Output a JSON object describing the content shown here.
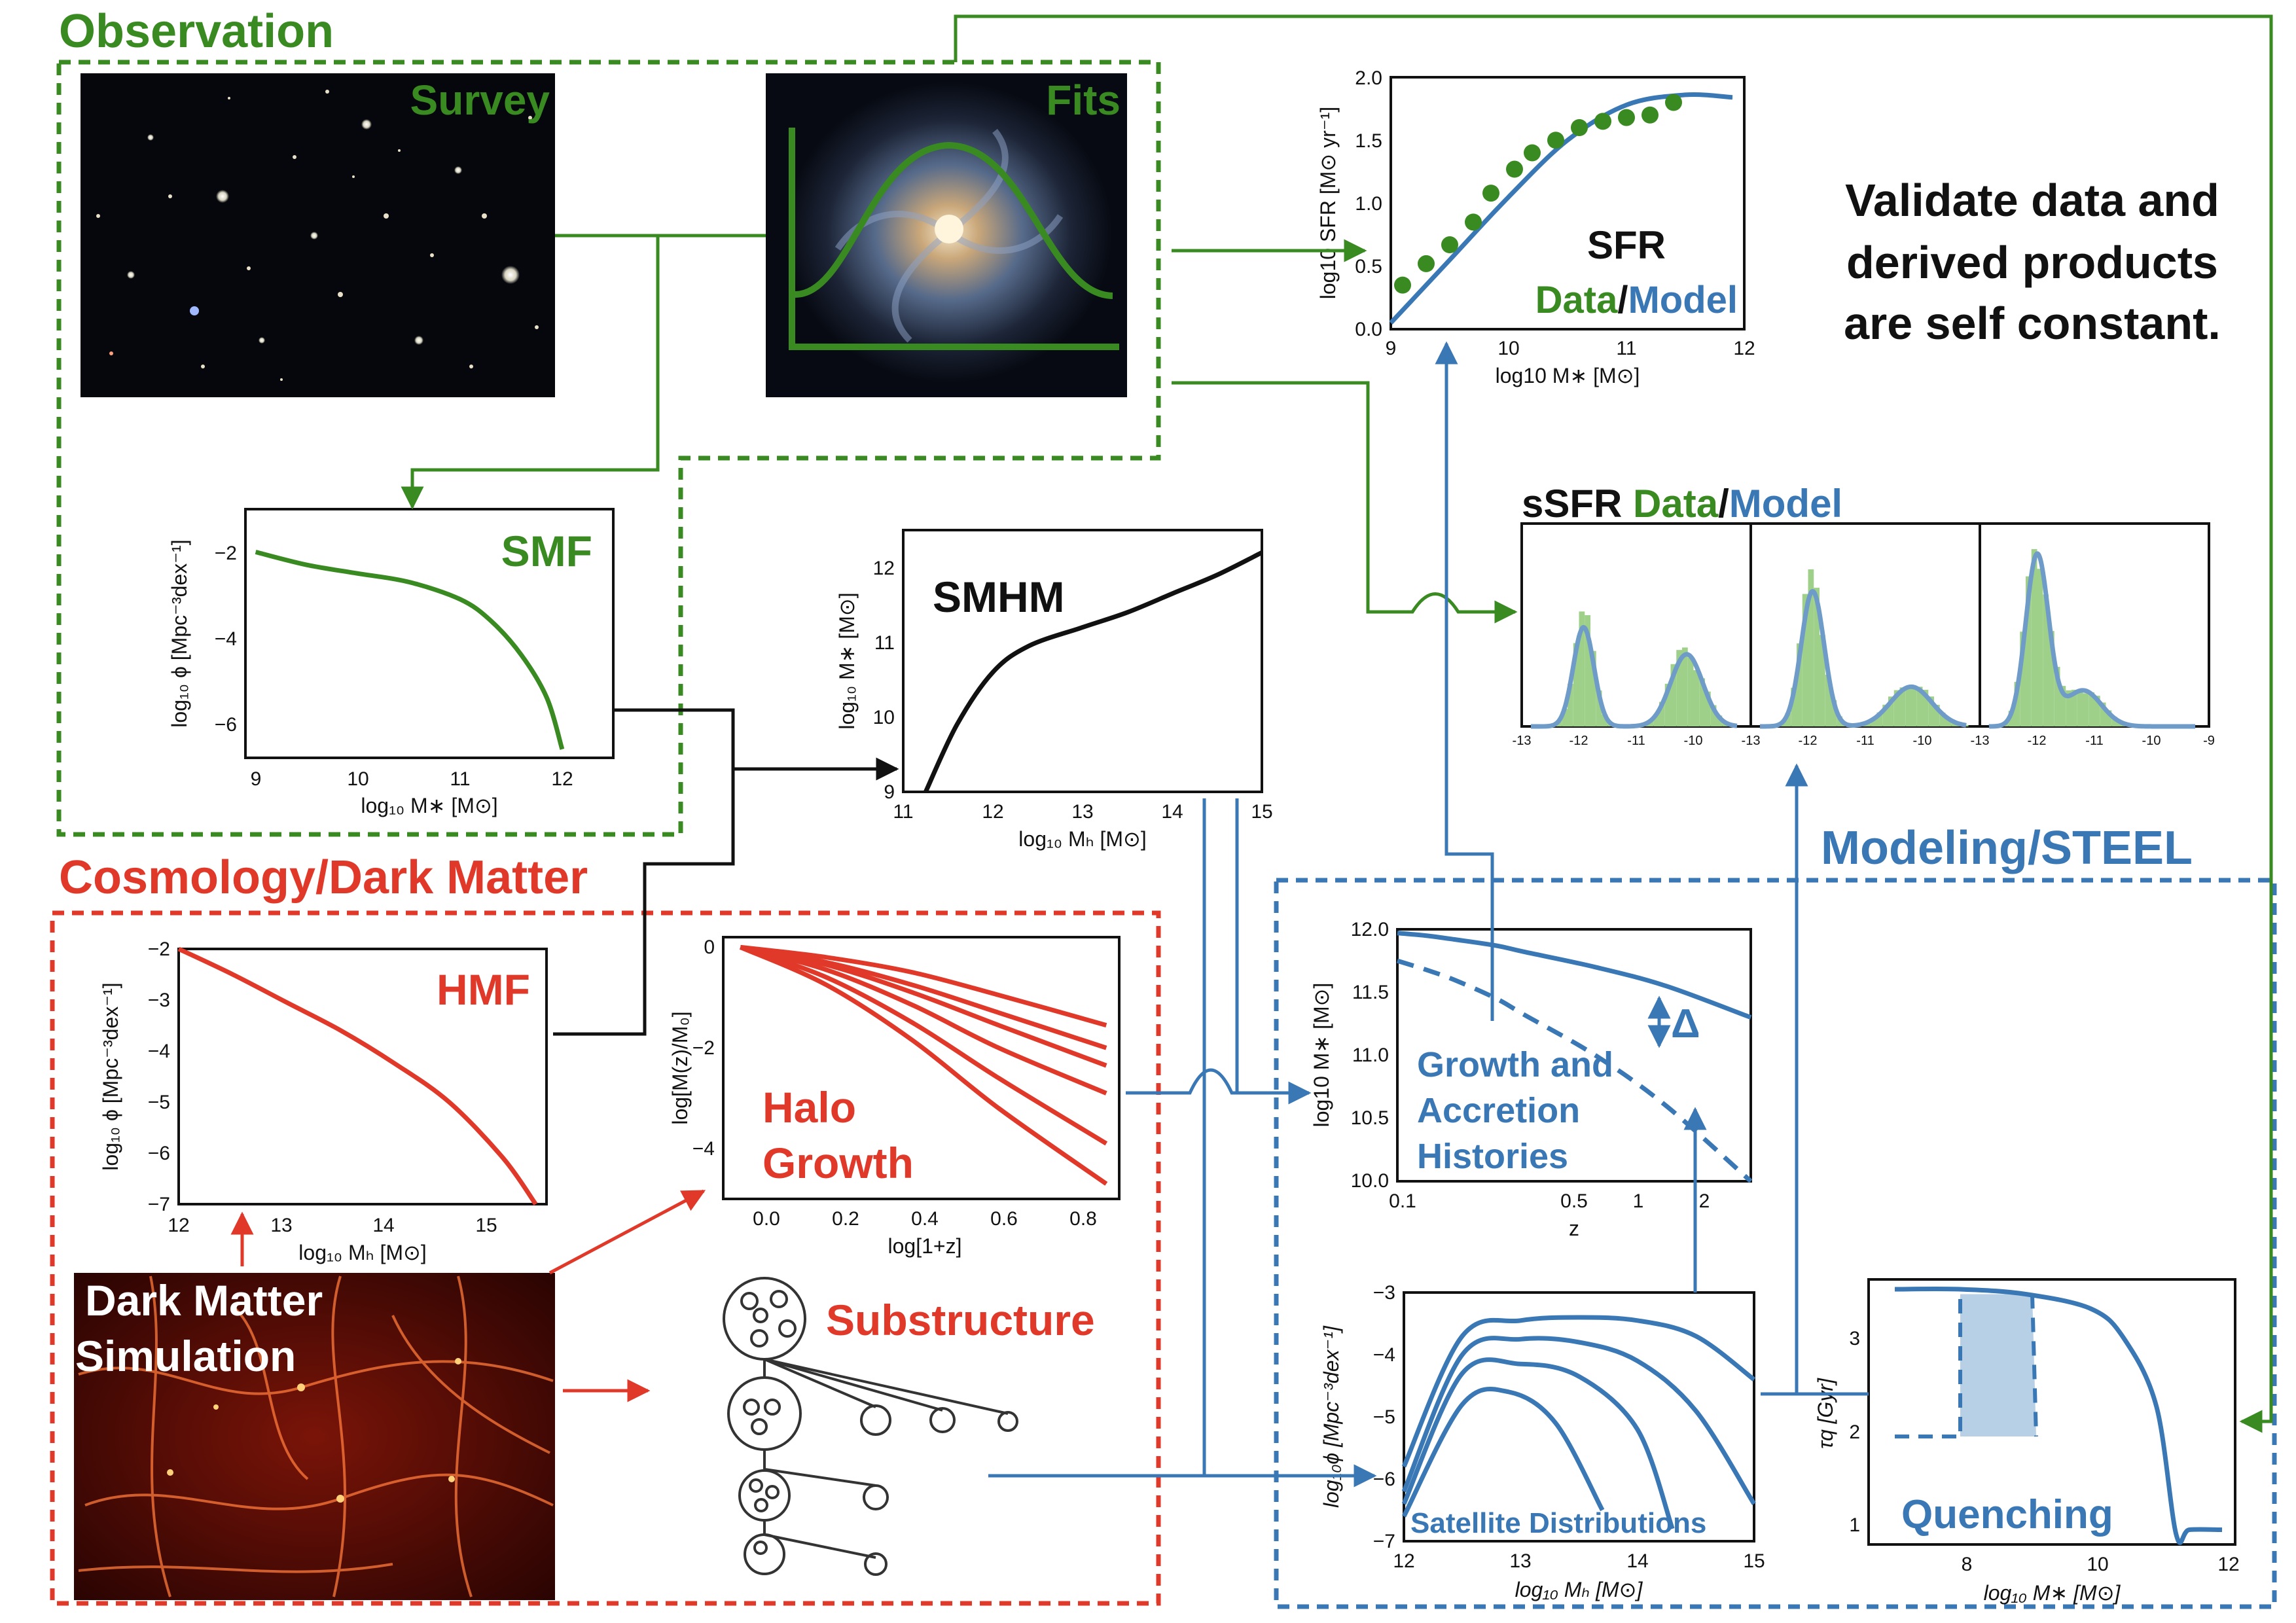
{
  "colors": {
    "observation": "#3a8a22",
    "cosmology": "#e0392a",
    "modeling": "#3a78b5",
    "black": "#111111",
    "hist_fill": "#9ed08a"
  },
  "sections": {
    "observation": "Observation",
    "cosmology": "Cosmology/Dark Matter",
    "modeling": "Modeling/STEEL"
  },
  "images": {
    "survey": "Survey",
    "fits": "Fits",
    "dm_line1": "Dark Matter",
    "dm_line2": "Simulation",
    "substructure": "Substructure"
  },
  "note": {
    "line1": "Validate data and",
    "line2": "derived products",
    "line3": "are self constant."
  },
  "plots": {
    "sfr": {
      "title": "SFR",
      "data_word": "Data",
      "slash": "/",
      "model_word": "Model",
      "xlabel": "log10 M∗ [M⊙]",
      "ylabel": "log10 SFR [M⊙ yr⁻¹]",
      "xticks": [
        "9",
        "10",
        "11",
        "12"
      ],
      "yticks": [
        "0.0",
        "0.5",
        "1.0",
        "1.5",
        "2.0"
      ]
    },
    "ssfr": {
      "title_a": "sSFR ",
      "data_word": "Data",
      "slash": "/",
      "model_word": "Model",
      "xticks_1": [
        "-13",
        "-12",
        "-11",
        "-10"
      ],
      "xticks_2": [
        "-13",
        "-12",
        "-11",
        "-10"
      ],
      "xticks_3": [
        "-13",
        "-12",
        "-11",
        "-10",
        "-9"
      ]
    },
    "smf": {
      "title": "SMF",
      "xlabel": "log₁₀ M∗ [M⊙]",
      "ylabel": "log₁₀ ϕ [Mpc⁻³dex⁻¹]",
      "xticks": [
        "9",
        "10",
        "11",
        "12"
      ],
      "yticks": [
        "−2",
        "−4",
        "−6"
      ]
    },
    "smhm": {
      "title": "SMHM",
      "xlabel": "log₁₀ Mₕ [M⊙]",
      "ylabel": "log₁₀ M∗ [M⊙]",
      "xticks": [
        "11",
        "12",
        "13",
        "14",
        "15"
      ],
      "yticks": [
        "9",
        "10",
        "11",
        "12"
      ]
    },
    "hmf": {
      "title": "HMF",
      "xlabel": "log₁₀ Mₕ [M⊙]",
      "ylabel": "log₁₀ ϕ [Mpc⁻³dex⁻¹]",
      "xticks": [
        "12",
        "13",
        "14",
        "15"
      ],
      "yticks": [
        "−2",
        "−3",
        "−4",
        "−5",
        "−6",
        "−7"
      ]
    },
    "halo_growth": {
      "title_line1": "Halo",
      "title_line2": "Growth",
      "xlabel": "log[1+z]",
      "ylabel": "log[M(z)/M₀]",
      "xticks": [
        "0.0",
        "0.2",
        "0.4",
        "0.6",
        "0.8"
      ],
      "yticks": [
        "0",
        "−2",
        "−4"
      ]
    },
    "growth": {
      "title_line1": "Growth and",
      "title_line2": "Accretion",
      "title_line3": "Histories",
      "delta": "Δ",
      "xlabel": "z",
      "ylabel": "log10 M∗ [M⊙]",
      "xticks": [
        "0.1",
        "0.5",
        "1",
        "2"
      ],
      "yticks": [
        "12.0",
        "11.5",
        "11.0",
        "10.5",
        "10.0"
      ]
    },
    "satellite": {
      "title": "Satellite Distributions",
      "xlabel": "log₁₀ Mₕ [M⊙]",
      "ylabel": "log₁₀ϕ [Mpc⁻³dex⁻¹]",
      "xticks": [
        "12",
        "13",
        "14",
        "15"
      ],
      "yticks": [
        "−3",
        "−4",
        "−5",
        "−6",
        "−7"
      ]
    },
    "quenching": {
      "title": "Quenching",
      "xlabel": "log₁₀ M∗ [M⊙]",
      "ylabel": "τq [Gyr]",
      "xticks": [
        "8",
        "10",
        "12"
      ],
      "yticks": [
        "3",
        "2",
        "1"
      ]
    }
  },
  "chart_data": [
    {
      "type": "scatter",
      "xlabel": "log10 M∗ [M⊙]",
      "ylabel": "log10 SFR [M⊙ yr⁻¹]",
      "xlim": [
        9,
        12
      ],
      "ylim": [
        0,
        2
      ],
      "series": [
        {
          "name": "Data",
          "x": [
            9.1,
            9.3,
            9.5,
            9.7,
            9.85,
            10.05,
            10.2,
            10.4,
            10.6,
            10.8,
            11.0,
            11.2,
            11.4
          ],
          "y": [
            0.35,
            0.52,
            0.67,
            0.85,
            1.08,
            1.27,
            1.4,
            1.5,
            1.6,
            1.65,
            1.68,
            1.7,
            1.8
          ]
        },
        {
          "name": "Model",
          "x": [
            9.0,
            9.5,
            10.0,
            10.5,
            11.0,
            11.5,
            11.9
          ],
          "y": [
            0.05,
            0.55,
            1.05,
            1.5,
            1.78,
            1.86,
            1.84
          ]
        }
      ]
    },
    {
      "type": "line",
      "xlabel": "log₁₀ M∗ [M⊙]",
      "ylabel": "log₁₀ ϕ [Mpc⁻³dex⁻¹]",
      "xlim": [
        8.9,
        12.5
      ],
      "ylim": [
        -7,
        -1.2
      ],
      "x": [
        9.0,
        9.5,
        10.0,
        10.5,
        11.0,
        11.3,
        11.6,
        11.85,
        12.0
      ],
      "y": [
        -2.2,
        -2.5,
        -2.7,
        -2.9,
        -3.3,
        -3.8,
        -4.6,
        -5.6,
        -6.8
      ]
    },
    {
      "type": "line",
      "xlabel": "log₁₀ Mₕ [M⊙]",
      "ylabel": "log₁₀ M∗ [M⊙]",
      "xlim": [
        11,
        15
      ],
      "ylim": [
        9,
        12.5
      ],
      "x": [
        11.25,
        11.6,
        12.0,
        12.4,
        13.0,
        13.5,
        14.0,
        14.5,
        15.0
      ],
      "y": [
        9.0,
        9.9,
        10.6,
        10.95,
        11.2,
        11.4,
        11.65,
        11.9,
        12.2
      ]
    },
    {
      "type": "line",
      "xlabel": "log₁₀ Mₕ [M⊙]",
      "ylabel": "log₁₀ ϕ [Mpc⁻³dex⁻¹]",
      "xlim": [
        12,
        15.4
      ],
      "ylim": [
        -7,
        -2
      ],
      "x": [
        12.0,
        12.5,
        13.0,
        13.5,
        14.0,
        14.5,
        15.0,
        15.3
      ],
      "y": [
        -2.0,
        -2.5,
        -3.05,
        -3.6,
        -4.25,
        -5.0,
        -6.1,
        -7.0
      ]
    },
    {
      "type": "line",
      "xlabel": "log[1+z]",
      "ylabel": "log[M(z)/M₀]",
      "xlim": [
        -0.04,
        0.88
      ],
      "ylim": [
        -5.0,
        0.2
      ],
      "x": [
        0.0,
        0.2,
        0.4,
        0.6,
        0.85
      ],
      "series": [
        {
          "values": [
            0,
            -0.2,
            -0.5,
            -0.95,
            -1.55
          ]
        },
        {
          "values": [
            0,
            -0.3,
            -0.75,
            -1.3,
            -2.0
          ]
        },
        {
          "values": [
            0,
            -0.35,
            -0.9,
            -1.55,
            -2.35
          ]
        },
        {
          "values": [
            0,
            -0.45,
            -1.15,
            -2.0,
            -2.9
          ]
        },
        {
          "values": [
            0,
            -0.6,
            -1.5,
            -2.6,
            -3.9
          ]
        },
        {
          "values": [
            0,
            -0.75,
            -1.85,
            -3.2,
            -4.7
          ]
        }
      ]
    },
    {
      "type": "line",
      "xlabel": "z",
      "ylabel": "log10 M∗ [M⊙]",
      "xlim": [
        0.1,
        2.6
      ],
      "ylim": [
        10.0,
        12.0
      ],
      "x": [
        0.1,
        0.3,
        0.5,
        0.8,
        1.0,
        1.5,
        2.0,
        2.6
      ],
      "series": [
        {
          "values": [
            11.97,
            11.95,
            11.92,
            11.87,
            11.82,
            11.7,
            11.55,
            11.3
          ]
        },
        {
          "values": [
            11.75,
            11.68,
            11.6,
            11.45,
            11.32,
            11.0,
            10.6,
            10.0
          ]
        }
      ]
    },
    {
      "type": "line",
      "xlabel": "log₁₀ Mₕ [M⊙]",
      "ylabel": "log₁₀ϕ [Mpc⁻³dex⁻¹]",
      "xlim": [
        12,
        15
      ],
      "ylim": [
        -7,
        -3
      ],
      "series": [
        {
          "x": [
            12.0,
            12.5,
            13.0,
            13.5,
            14.0,
            14.5,
            15.0
          ],
          "values": [
            -5.8,
            -3.7,
            -3.45,
            -3.4,
            -3.45,
            -3.7,
            -4.4
          ]
        },
        {
          "x": [
            12.0,
            12.5,
            13.0,
            13.5,
            14.0,
            14.5,
            15.0
          ],
          "values": [
            -6.2,
            -4.0,
            -3.75,
            -3.8,
            -4.1,
            -4.9,
            -6.4
          ]
        },
        {
          "x": [
            12.0,
            12.5,
            13.0,
            13.5,
            14.0,
            14.3
          ],
          "values": [
            -6.4,
            -4.3,
            -4.15,
            -4.35,
            -5.2,
            -6.8
          ]
        },
        {
          "x": [
            12.0,
            12.5,
            12.9,
            13.3,
            13.7
          ],
          "values": [
            -6.6,
            -4.8,
            -4.6,
            -5.1,
            -6.5
          ]
        }
      ]
    },
    {
      "type": "line",
      "xlabel": "log₁₀ M∗ [M⊙]",
      "ylabel": "τq [Gyr]",
      "xlim": [
        6.6,
        12.2
      ],
      "ylim": [
        0.9,
        3.6
      ],
      "series": [
        {
          "x": [
            7.0,
            8.0,
            9.0,
            10.0,
            10.5,
            11.0,
            11.3,
            11.5,
            12.0
          ],
          "values": [
            3.5,
            3.5,
            3.45,
            3.3,
            3.0,
            2.3,
            1.0,
            1.05,
            1.05
          ]
        }
      ]
    }
  ]
}
